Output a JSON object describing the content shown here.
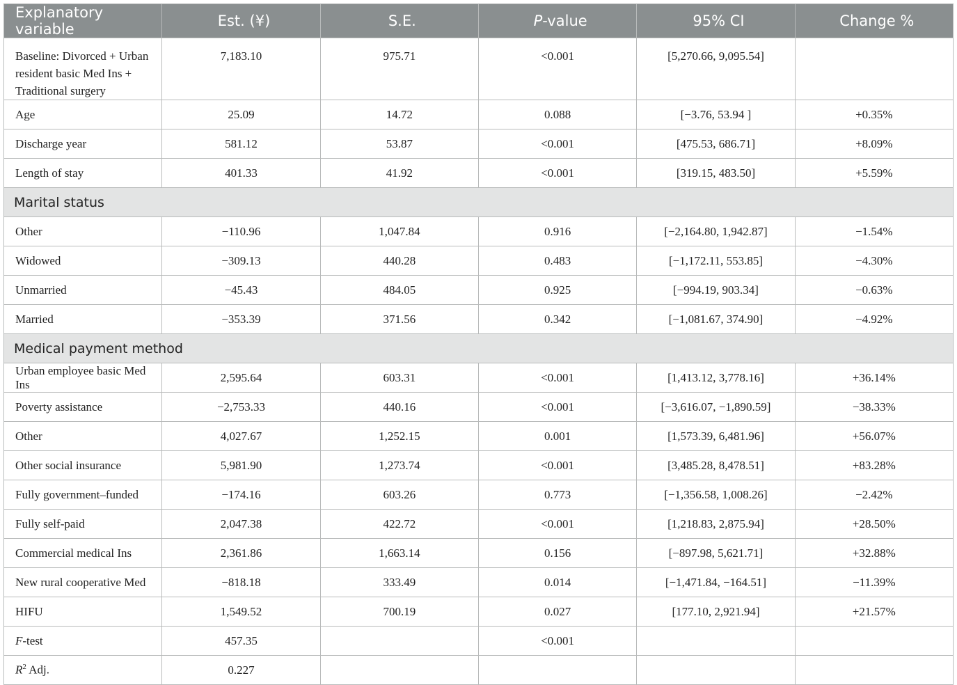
{
  "table": {
    "headers": [
      {
        "text": "Explanatory variable"
      },
      {
        "text": "Est. (¥)"
      },
      {
        "text": "S.E."
      },
      {
        "italic": "P",
        "text": "-value"
      },
      {
        "text": "95% CI"
      },
      {
        "text": "Change %"
      }
    ],
    "rows": [
      {
        "type": "baseline",
        "label": "Baseline: Divorced + Urban resident basic Med Ins + Traditional surgery",
        "cells": [
          "7,183.10",
          "975.71",
          "<0.001",
          "[5,270.66, 9,095.54]",
          ""
        ]
      },
      {
        "label": "Age",
        "cells": [
          "25.09",
          "14.72",
          "0.088",
          "[−3.76, 53.94 ]",
          "+0.35%"
        ]
      },
      {
        "label": "Discharge year",
        "cells": [
          "581.12",
          "53.87",
          "<0.001",
          "[475.53, 686.71]",
          "+8.09%"
        ]
      },
      {
        "label": "Length of stay",
        "cells": [
          "401.33",
          "41.92",
          "<0.001",
          "[319.15, 483.50]",
          "+5.59%"
        ]
      },
      {
        "type": "section",
        "label": "Marital status"
      },
      {
        "label": "Other",
        "cells": [
          "−110.96",
          "1,047.84",
          "0.916",
          "[−2,164.80, 1,942.87]",
          "−1.54%"
        ]
      },
      {
        "label": "Widowed",
        "cells": [
          "−309.13",
          "440.28",
          "0.483",
          "[−1,172.11, 553.85]",
          "−4.30%"
        ]
      },
      {
        "label": "Unmarried",
        "cells": [
          "−45.43",
          "484.05",
          "0.925",
          "[−994.19, 903.34]",
          "−0.63%"
        ]
      },
      {
        "label": "Married",
        "cells": [
          "−353.39",
          "371.56",
          "0.342",
          "[−1,081.67, 374.90]",
          "−4.92%"
        ]
      },
      {
        "type": "section",
        "label": "Medical payment method"
      },
      {
        "label": "Urban employee basic Med Ins",
        "cells": [
          "2,595.64",
          "603.31",
          "<0.001",
          "[1,413.12, 3,778.16]",
          "+36.14%"
        ]
      },
      {
        "label": "Poverty assistance",
        "cells": [
          "−2,753.33",
          "440.16",
          "<0.001",
          "[−3,616.07, −1,890.59]",
          "−38.33%"
        ]
      },
      {
        "label": "Other",
        "cells": [
          "4,027.67",
          "1,252.15",
          "0.001",
          "[1,573.39, 6,481.96]",
          "+56.07%"
        ]
      },
      {
        "label": "Other social insurance",
        "cells": [
          "5,981.90",
          "1,273.74",
          "<0.001",
          "[3,485.28, 8,478.51]",
          "+83.28%"
        ]
      },
      {
        "label": "Fully government–funded",
        "cells": [
          "−174.16",
          "603.26",
          "0.773",
          "[−1,356.58, 1,008.26]",
          "−2.42%"
        ]
      },
      {
        "label": "Fully self-paid",
        "cells": [
          "2,047.38",
          "422.72",
          "<0.001",
          "[1,218.83, 2,875.94]",
          "+28.50%"
        ]
      },
      {
        "label": "Commercial medical Ins",
        "cells": [
          "2,361.86",
          "1,663.14",
          "0.156",
          "[−897.98, 5,621.71]",
          "+32.88%"
        ]
      },
      {
        "label": "New rural cooperative Med",
        "cells": [
          "−818.18",
          "333.49",
          "0.014",
          "[−1,471.84, −164.51]",
          "−11.39%"
        ]
      },
      {
        "label": "HIFU",
        "cells": [
          "1,549.52",
          "700.19",
          "0.027",
          "[177.10, 2,921.94]",
          "+21.57%"
        ]
      },
      {
        "label_italic": "F",
        "label": "-test",
        "cells": [
          "457.35",
          "",
          "<0.001",
          "",
          ""
        ]
      },
      {
        "label_italic": "R",
        "label_sup": "2",
        "label": " Adj.",
        "cells": [
          "0.227",
          "",
          "",
          "",
          ""
        ]
      }
    ]
  }
}
